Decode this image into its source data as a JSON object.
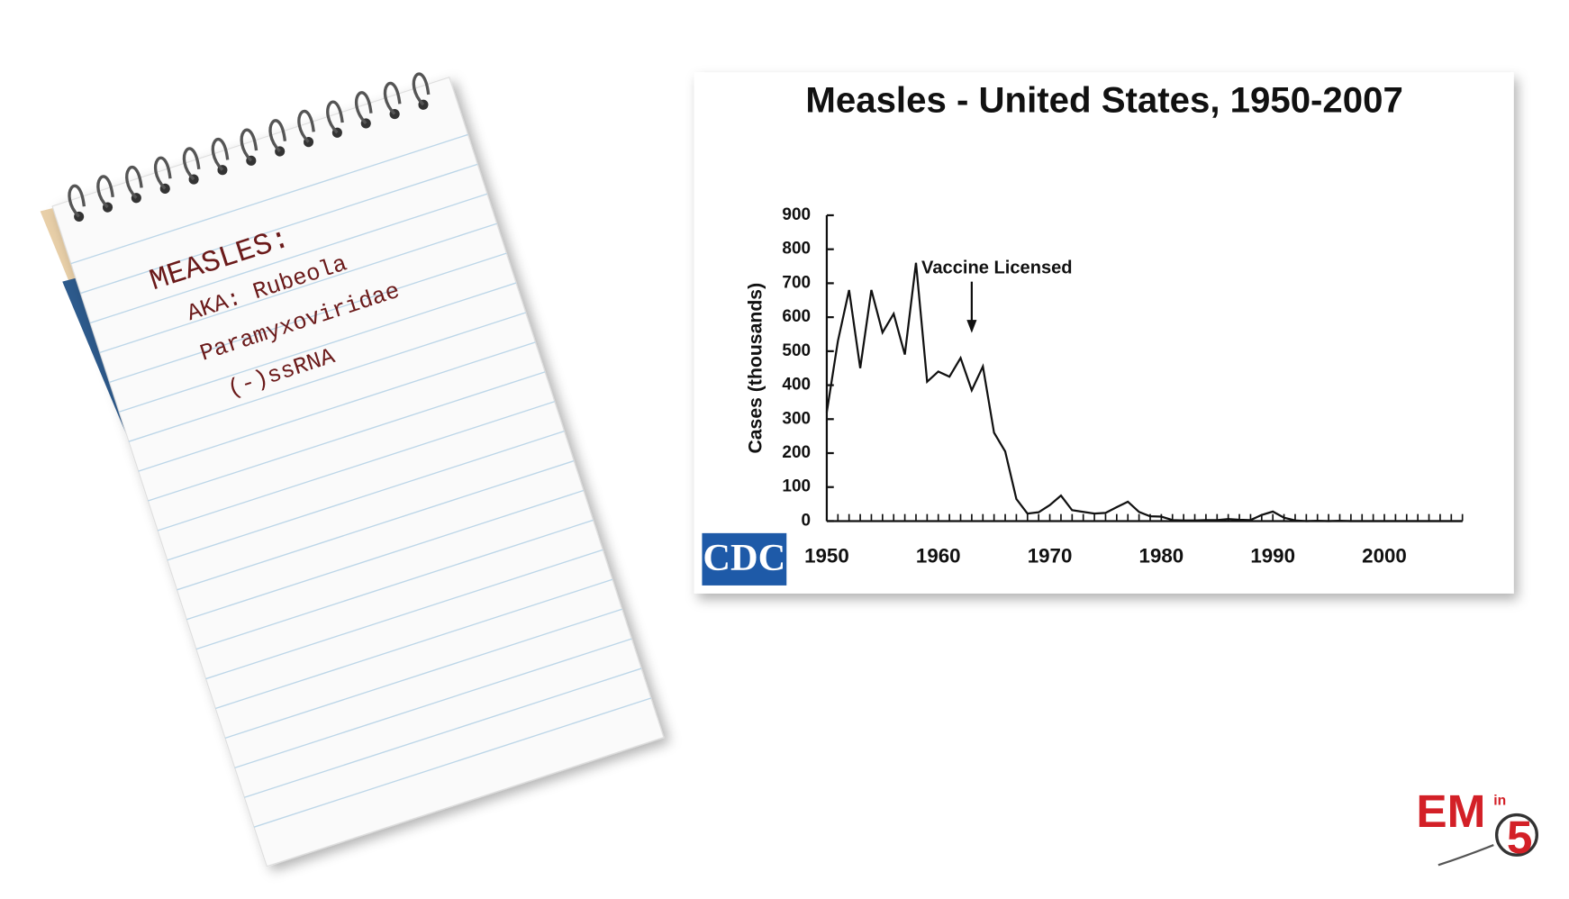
{
  "notepad": {
    "heading": "MEASLES:",
    "lines": [
      "AKA: Rubeola",
      "Paramyxoviridae",
      "(-)ssRNA"
    ]
  },
  "chart_data": {
    "type": "line",
    "title": "Measles - United States, 1950-2007",
    "y_label": "Cases (thousands)",
    "source": "CDC",
    "annotation": {
      "text": "Vaccine Licensed",
      "x": 1963
    },
    "x": [
      1950,
      1951,
      1952,
      1953,
      1954,
      1955,
      1956,
      1957,
      1958,
      1959,
      1960,
      1961,
      1962,
      1963,
      1964,
      1965,
      1966,
      1967,
      1968,
      1969,
      1970,
      1971,
      1972,
      1973,
      1974,
      1975,
      1976,
      1977,
      1978,
      1979,
      1980,
      1981,
      1982,
      1983,
      1984,
      1985,
      1986,
      1987,
      1988,
      1989,
      1990,
      1991,
      1992,
      1993,
      1994,
      1995,
      1996,
      1997,
      1998,
      1999,
      2000,
      2001,
      2002,
      2003,
      2004,
      2005,
      2006,
      2007
    ],
    "values": [
      320,
      530,
      680,
      450,
      680,
      555,
      610,
      490,
      760,
      410,
      440,
      425,
      480,
      385,
      455,
      260,
      205,
      65,
      22,
      26,
      47,
      75,
      32,
      27,
      22,
      24,
      41,
      57,
      27,
      14,
      13,
      3,
      2,
      2,
      3,
      3,
      6,
      4,
      3,
      18,
      28,
      10,
      2,
      0,
      1,
      0,
      1,
      0,
      0,
      0,
      0,
      0,
      0,
      0,
      0,
      0,
      0,
      0
    ],
    "color": "#111111",
    "xlim": [
      1950,
      2007
    ],
    "ylim": [
      0,
      900
    ],
    "xticks": [
      1950,
      1960,
      1970,
      1980,
      1990,
      2000
    ],
    "yticks": [
      0,
      100,
      200,
      300,
      400,
      500,
      600,
      700,
      800,
      900
    ]
  },
  "logo": {
    "main": "EM",
    "small": "in",
    "number": "5"
  }
}
